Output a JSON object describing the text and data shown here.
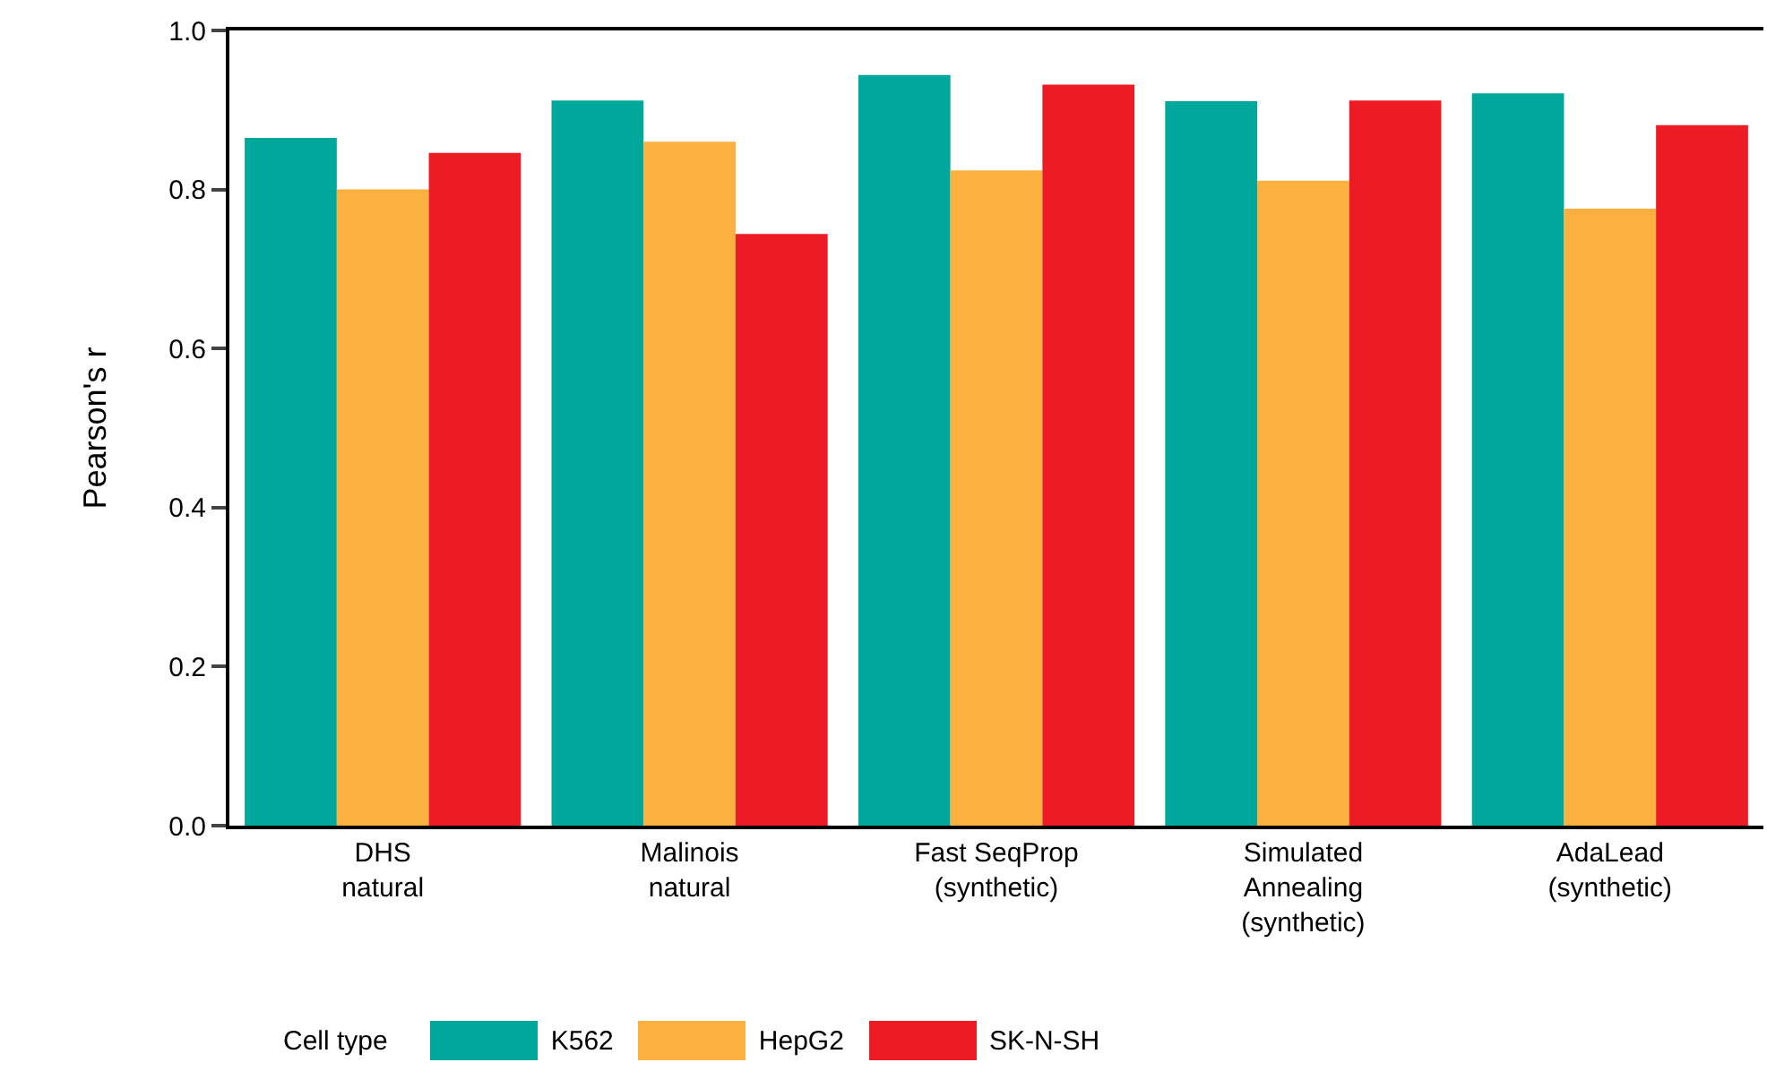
{
  "chart_data": {
    "type": "bar",
    "ylabel": "Pearson's r",
    "legend_title": "Cell type",
    "legend": "bottom",
    "grid": false,
    "categories": [
      "DHS\nnatural",
      "Malinois\nnatural",
      "Fast SeqProp\n(synthetic)",
      "Simulated\nAnnealing\n(synthetic)",
      "AdaLead\n(synthetic)"
    ],
    "series": [
      {
        "name": "K562",
        "color": "#00a79b",
        "values": [
          0.865,
          0.912,
          0.944,
          0.911,
          0.921
        ]
      },
      {
        "name": "HepG2",
        "color": "#fbb040",
        "values": [
          0.8,
          0.86,
          0.824,
          0.811,
          0.776
        ]
      },
      {
        "name": "SK-N-SH",
        "color": "#ed1c24",
        "values": [
          0.846,
          0.744,
          0.932,
          0.912,
          0.881
        ]
      }
    ],
    "ylim": [
      0,
      1
    ],
    "yticks": [
      {
        "value": 0,
        "label": "0.0"
      },
      {
        "value": 0.2,
        "label": "0.2"
      },
      {
        "value": 0.4,
        "label": "0.4"
      },
      {
        "value": 0.6,
        "label": "0.6"
      },
      {
        "value": 0.8,
        "label": "0.8"
      },
      {
        "value": 1,
        "label": "1.0"
      }
    ]
  }
}
